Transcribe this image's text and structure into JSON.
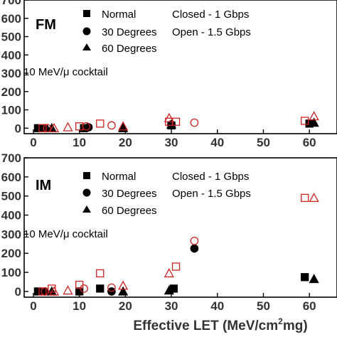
{
  "chart_data": [
    {
      "type": "scatter",
      "panel_label": "FM",
      "annotation": "10 MeV/μ cocktail",
      "legend_markers": [
        "Normal",
        "30 Degrees",
        "60 Degrees"
      ],
      "legend_modes": [
        "Closed - 1 Gbps",
        "Open - 1.5 Gbps"
      ],
      "xlim": [
        -2,
        66
      ],
      "ylim": [
        -30,
        700
      ],
      "x_ticks": [
        0,
        10,
        20,
        30,
        40,
        50,
        60
      ],
      "y_ticks": [
        0,
        100,
        200,
        300,
        400,
        500,
        600,
        700
      ],
      "series": [
        {
          "marker": "square",
          "fill": "closed",
          "color": "#000000",
          "points": [
            [
              1,
              0
            ],
            [
              11,
              0
            ],
            [
              30,
              15
            ],
            [
              60,
              25
            ]
          ]
        },
        {
          "marker": "circle",
          "fill": "closed",
          "color": "#000000",
          "points": [
            [
              2.5,
              0
            ],
            [
              12,
              5
            ],
            [
              30,
              20
            ]
          ]
        },
        {
          "marker": "triangle",
          "fill": "closed",
          "color": "#000000",
          "points": [
            [
              4,
              0
            ],
            [
              19.5,
              0
            ],
            [
              30,
              20
            ],
            [
              61,
              30
            ]
          ]
        },
        {
          "marker": "square",
          "fill": "open",
          "color": "#cc2222",
          "points": [
            [
              2,
              0
            ],
            [
              10,
              10
            ],
            [
              14.5,
              25
            ],
            [
              29.5,
              35
            ],
            [
              31,
              35
            ],
            [
              59,
              40
            ]
          ]
        },
        {
          "marker": "circle",
          "fill": "open",
          "color": "#cc2222",
          "points": [
            [
              3,
              0
            ],
            [
              11.5,
              10
            ],
            [
              17,
              15
            ],
            [
              35,
              30
            ]
          ]
        },
        {
          "marker": "triangle",
          "fill": "open",
          "color": "#cc2222",
          "points": [
            [
              4.5,
              0
            ],
            [
              7.5,
              5
            ],
            [
              19.5,
              10
            ],
            [
              29.5,
              55
            ],
            [
              61,
              65
            ]
          ]
        }
      ]
    },
    {
      "type": "scatter",
      "panel_label": "IM",
      "annotation": "10 MeV/μ cocktail",
      "legend_markers": [
        "Normal",
        "30 Degrees",
        "60 Degrees"
      ],
      "legend_modes": [
        "Closed - 1 Gbps",
        "Open - 1.5 Gbps"
      ],
      "xlim": [
        -2,
        66
      ],
      "ylim": [
        -30,
        700
      ],
      "x_ticks": [
        0,
        10,
        20,
        30,
        40,
        50,
        60
      ],
      "y_ticks": [
        0,
        100,
        200,
        300,
        400,
        500,
        600,
        700
      ],
      "series": [
        {
          "marker": "square",
          "fill": "closed",
          "color": "#000000",
          "points": [
            [
              1,
              0
            ],
            [
              10,
              0
            ],
            [
              14.5,
              15
            ],
            [
              30.5,
              15
            ],
            [
              59,
              75
            ]
          ]
        },
        {
          "marker": "circle",
          "fill": "closed",
          "color": "#000000",
          "points": [
            [
              2.5,
              0
            ],
            [
              17,
              0
            ],
            [
              35,
              225
            ]
          ]
        },
        {
          "marker": "triangle",
          "fill": "closed",
          "color": "#000000",
          "points": [
            [
              4,
              0
            ],
            [
              19.5,
              0
            ],
            [
              29.5,
              5
            ],
            [
              61,
              65
            ]
          ]
        },
        {
          "marker": "square",
          "fill": "open",
          "color": "#cc2222",
          "points": [
            [
              2,
              0
            ],
            [
              4,
              15
            ],
            [
              10,
              35
            ],
            [
              14.5,
              95
            ],
            [
              31,
              130
            ],
            [
              59,
              490
            ]
          ]
        },
        {
          "marker": "circle",
          "fill": "open",
          "color": "#cc2222",
          "points": [
            [
              2.5,
              0
            ],
            [
              11,
              15
            ],
            [
              17,
              20
            ],
            [
              35,
              265
            ]
          ]
        },
        {
          "marker": "triangle",
          "fill": "open",
          "color": "#cc2222",
          "points": [
            [
              4.5,
              0
            ],
            [
              7.5,
              5
            ],
            [
              19.5,
              30
            ],
            [
              29.5,
              95
            ],
            [
              61,
              490
            ]
          ]
        }
      ]
    }
  ],
  "x_axis_label": "Effective LET (MeV/cm",
  "x_axis_label_sup": "2",
  "x_axis_label_end": "mg)"
}
